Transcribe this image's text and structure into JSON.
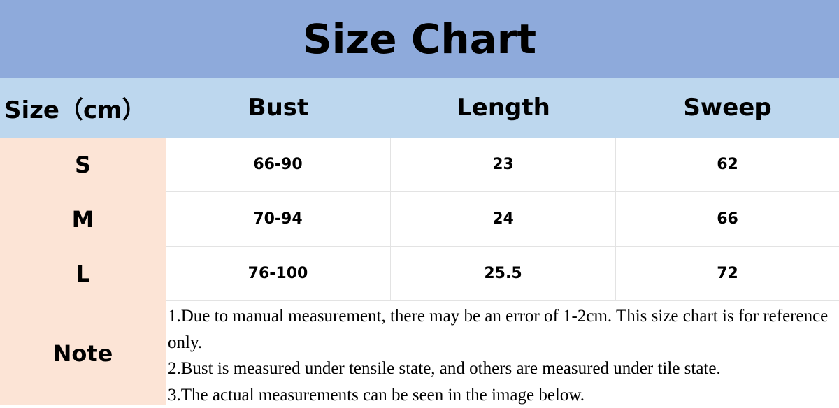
{
  "title": "Size Chart",
  "colors": {
    "title_bg": "#8eaadb",
    "header_bg": "#bdd7ee",
    "size_column_bg": "#fce4d6"
  },
  "headers": [
    "Size（cm）",
    "Bust",
    "Length",
    "Sweep"
  ],
  "rows": [
    {
      "size": "S",
      "bust": "66-90",
      "length": "23",
      "sweep": "62"
    },
    {
      "size": "M",
      "bust": "70-94",
      "length": "24",
      "sweep": "66"
    },
    {
      "size": "L",
      "bust": "76-100",
      "length": "25.5",
      "sweep": "72"
    }
  ],
  "note": {
    "label": "Note",
    "lines": [
      "1.Due to manual measurement, there may be an error of 1-2cm. This size chart is for reference only.",
      "2.Bust is measured under tensile state, and others are measured under tile state.",
      "3.The actual measurements can be seen in the image below."
    ]
  }
}
